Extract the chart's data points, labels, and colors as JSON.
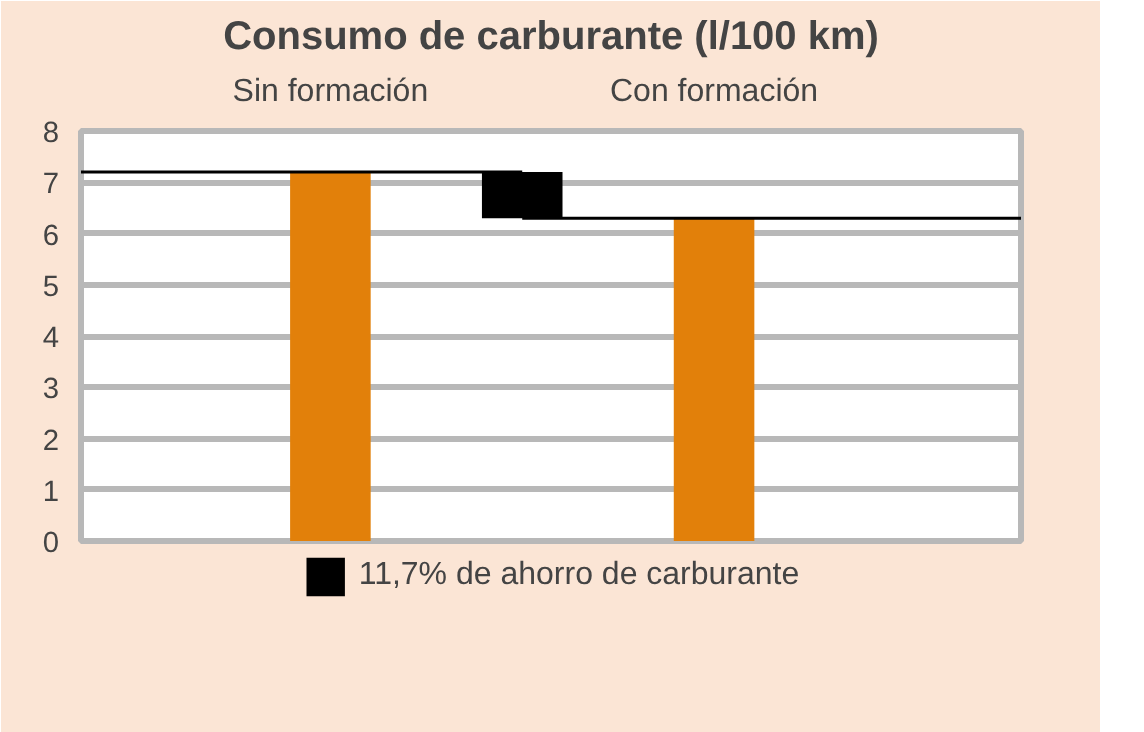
{
  "chart_data": {
    "type": "bar",
    "title": "Consumo de carburante (l/100 km)",
    "categories": [
      "Sin formación",
      null,
      "Con formación"
    ],
    "series": [
      {
        "color": "#e2800a",
        "values": [
          7.2,
          null,
          6.3
        ]
      },
      {
        "name": "11,7% de ahorro de carburante",
        "color": "#000000",
        "values": [
          null,
          0.9,
          null
        ],
        "base": [
          null,
          6.3,
          null
        ]
      }
    ],
    "ylim": [
      0,
      8
    ],
    "yticks": [
      0,
      1,
      2,
      3,
      4,
      5,
      6,
      7,
      8
    ],
    "grid": "y",
    "legend": "bottom",
    "ref_lines": [
      {
        "axis": "y",
        "value": 7.2,
        "color": "#000000"
      },
      {
        "axis": "y",
        "value": 6.3,
        "color": "#000000"
      }
    ]
  }
}
